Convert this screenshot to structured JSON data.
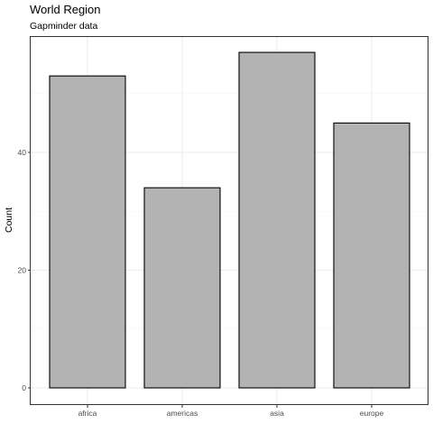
{
  "chart_data": {
    "type": "bar",
    "title": "World Region",
    "subtitle": "Gapminder data",
    "xlabel": "",
    "ylabel": "Count",
    "categories": [
      "africa",
      "americas",
      "asia",
      "europe"
    ],
    "values": [
      53,
      34,
      57,
      45
    ],
    "ylim": [
      0,
      60
    ],
    "yticks": [
      0,
      20,
      40
    ],
    "grid": true,
    "legend": "none",
    "colors": {
      "bar_fill": "#b3b3b3",
      "bar_stroke": "#000000",
      "grid_major": "#ebebeb",
      "grid_minor": "#f5f5f5",
      "panel_border": "#333333"
    }
  }
}
